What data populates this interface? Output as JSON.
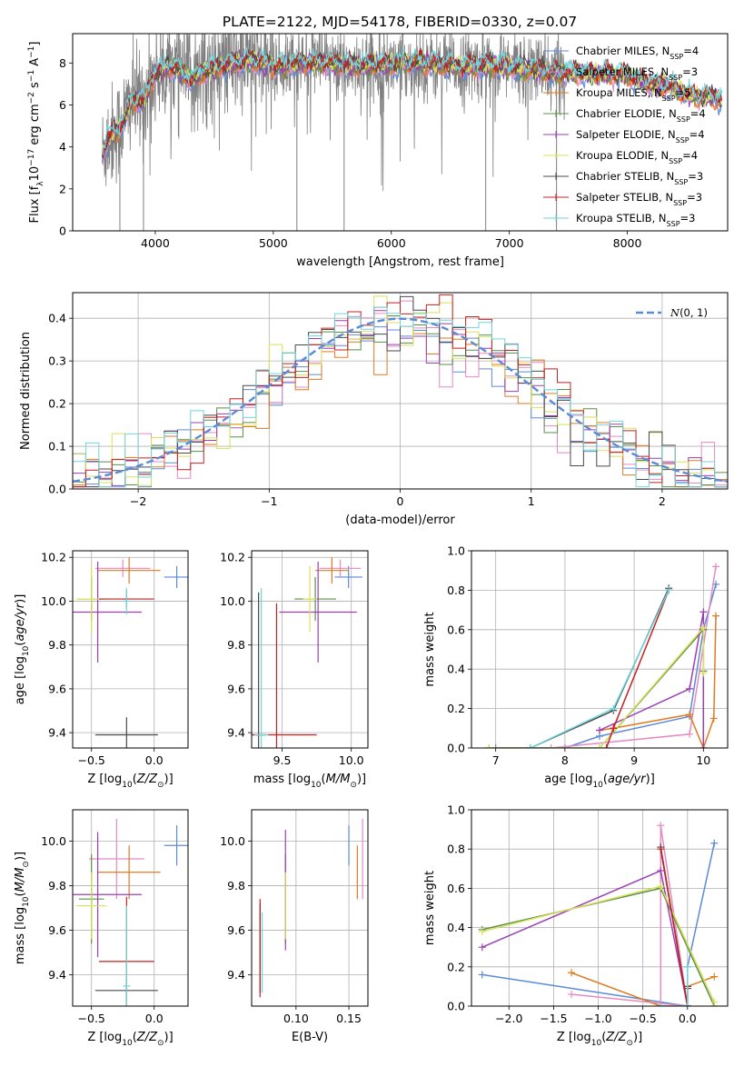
{
  "figure": {
    "title": "PLATE=2122, MJD=54178, FIBERID=0330, z=0.07"
  },
  "colors": {
    "Chabrier MILES": "#5b8bd6",
    "Salpeter MILES": "#e38ac4",
    "Kroupa MILES": "#e07a1f",
    "Chabrier ELODIE": "#5a8f4a",
    "Salpeter ELODIE": "#9b3fb5",
    "Kroupa ELODIE": "#d9e05a",
    "Chabrier STELIB": "#4a4a4a",
    "Salpeter STELIB": "#c42020",
    "Kroupa STELIB": "#6fd6de",
    "data": "#7f7f7f",
    "normal": "#5b8bd6"
  },
  "chart_data": [
    {
      "id": "spectrum",
      "type": "line",
      "xlabel": "wavelength [Angstrom, rest frame]",
      "ylabel": "Flux [f_λ 10^-17 erg cm^-2 s^-1 A^-1]",
      "xlim": [
        3300,
        8850
      ],
      "ylim": [
        0,
        9.4
      ],
      "xticks": [
        4000,
        5000,
        6000,
        7000,
        8000
      ],
      "yticks": [
        0,
        2,
        4,
        6,
        8
      ],
      "grid": false,
      "legend_position": "right",
      "legend": [
        {
          "base": "Chabrier MILES, N",
          "sub": "SSP",
          "tail": "=4"
        },
        {
          "base": "Salpeter MILES, N",
          "sub": "SSP",
          "tail": "=3"
        },
        {
          "base": "Kroupa MILES, N",
          "sub": "SSP",
          "tail": "=5"
        },
        {
          "base": "Chabrier ELODIE, N",
          "sub": "SSP",
          "tail": "=4"
        },
        {
          "base": "Salpeter ELODIE, N",
          "sub": "SSP",
          "tail": "=4"
        },
        {
          "base": "Kroupa ELODIE, N",
          "sub": "SSP",
          "tail": "=4"
        },
        {
          "base": "Chabrier STELIB, N",
          "sub": "SSP",
          "tail": "=3"
        },
        {
          "base": "Salpeter STELIB, N",
          "sub": "SSP",
          "tail": "=3"
        },
        {
          "base": "Kroupa STELIB, N",
          "sub": "SSP",
          "tail": "=3"
        }
      ],
      "continuum": {
        "x": [
          3550,
          3600,
          3700,
          3800,
          3900,
          4000,
          4100,
          4200,
          4300,
          4400,
          4500,
          4600,
          4700,
          4800,
          4900,
          5000,
          5200,
          5400,
          5600,
          5800,
          6000,
          6200,
          6400,
          6600,
          6800,
          7000,
          7200,
          7400,
          7600,
          7800,
          8000,
          8200,
          8400,
          8500,
          8800
        ],
        "y": [
          3.6,
          4.4,
          4.9,
          6.2,
          6.2,
          7.5,
          7.8,
          7.7,
          7.2,
          7.6,
          7.7,
          7.9,
          8.0,
          8.1,
          8.0,
          7.8,
          8.0,
          8.0,
          7.9,
          7.9,
          7.9,
          8.0,
          7.9,
          7.8,
          7.9,
          7.8,
          7.7,
          7.5,
          7.5,
          7.5,
          7.4,
          7.0,
          6.8,
          6.5,
          6.3
        ]
      }
    },
    {
      "id": "residuals",
      "type": "histogram",
      "xlabel": "(data-model)/error",
      "ylabel": "Normed distribution",
      "xlim": [
        -2.5,
        2.5
      ],
      "ylim": [
        0,
        0.46
      ],
      "xticks": [
        -2,
        -1,
        0,
        1,
        2
      ],
      "yticks": [
        0.0,
        0.1,
        0.2,
        0.3,
        0.4
      ],
      "grid": true,
      "legend_position": "top-right",
      "legend": "N(0,1)",
      "bin_width": 0.1
    },
    {
      "id": "age-vs-Z",
      "type": "errorbar",
      "xlabel": "Z [log10(Z/Z⊙)]",
      "ylabel": "age [log10(age/yr)]",
      "xlim": [
        -0.65,
        0.27
      ],
      "ylim": [
        9.33,
        10.23
      ],
      "xticks": [
        -0.5,
        0.0
      ],
      "yticks": [
        9.4,
        9.6,
        9.8,
        10.0,
        10.2
      ],
      "grid": true,
      "points": [
        {
          "m": "Chabrier MILES",
          "x": 0.18,
          "y": 10.11,
          "xe": 0.1,
          "ye": 0.05
        },
        {
          "m": "Salpeter MILES",
          "x": -0.25,
          "y": 10.15,
          "xe": 0.22,
          "ye": 0.04
        },
        {
          "m": "Kroupa MILES",
          "x": -0.2,
          "y": 10.14,
          "xe": 0.25,
          "ye": 0.06
        },
        {
          "m": "Chabrier ELODIE",
          "x": -0.5,
          "y": 10.01,
          "xe": 0.1,
          "ye": 0.1
        },
        {
          "m": "Salpeter ELODIE",
          "x": -0.45,
          "y": 9.95,
          "xe": 0.35,
          "ye": 0.23
        },
        {
          "m": "Kroupa ELODIE",
          "x": -0.5,
          "y": 10.01,
          "xe": 0.12,
          "ye": 0.15
        },
        {
          "m": "Chabrier STELIB",
          "x": -0.22,
          "y": 9.39,
          "xe": 0.25,
          "ye": 0.08
        },
        {
          "m": "Salpeter STELIB",
          "x": -0.22,
          "y": 10.01,
          "xe": 0.22,
          "ye": 0.04
        },
        {
          "m": "Kroupa STELIB",
          "x": -0.22,
          "y": 10.0,
          "xe": 0.03,
          "ye": 0.06
        }
      ]
    },
    {
      "id": "age-vs-mass",
      "type": "errorbar",
      "xlabel": "mass [log10(M/M⊙)]",
      "ylabel": "",
      "xlim": [
        9.28,
        10.12
      ],
      "ylim": [
        9.33,
        10.23
      ],
      "xticks": [
        9.5,
        10.0
      ],
      "yticks": [
        9.4,
        9.6,
        9.8,
        10.0,
        10.2
      ],
      "grid": true,
      "points": [
        {
          "m": "Chabrier MILES",
          "x": 9.98,
          "y": 10.11,
          "xe": 0.1,
          "ye": 0.05
        },
        {
          "m": "Salpeter MILES",
          "x": 9.92,
          "y": 10.15,
          "xe": 0.15,
          "ye": 0.04
        },
        {
          "m": "Kroupa MILES",
          "x": 9.86,
          "y": 10.14,
          "xe": 0.12,
          "ye": 0.06
        },
        {
          "m": "Chabrier ELODIE",
          "x": 9.74,
          "y": 10.01,
          "xe": 0.15,
          "ye": 0.1
        },
        {
          "m": "Salpeter ELODIE",
          "x": 9.76,
          "y": 9.95,
          "xe": 0.28,
          "ye": 0.23
        },
        {
          "m": "Kroupa ELODIE",
          "x": 9.7,
          "y": 10.01,
          "xe": 0.05,
          "ye": 0.15
        },
        {
          "m": "Chabrier STELIB",
          "x": 9.33,
          "y": 9.39,
          "xe": 0.05,
          "ye": 0.65
        },
        {
          "m": "Salpeter STELIB",
          "x": 9.46,
          "y": 9.39,
          "xe": 0.29,
          "ye": 0.6
        },
        {
          "m": "Kroupa STELIB",
          "x": 9.35,
          "y": 9.39,
          "xe": 0.05,
          "ye": 0.67
        }
      ]
    },
    {
      "id": "weight-vs-age",
      "type": "line",
      "xlabel": "age [log10(age/yr)]",
      "ylabel": "mass weight",
      "xlim": [
        6.65,
        10.35
      ],
      "ylim": [
        0,
        1.0
      ],
      "xticks": [
        7,
        8,
        9,
        10
      ],
      "yticks": [
        0.0,
        0.2,
        0.4,
        0.6,
        0.8,
        1.0
      ],
      "grid": true,
      "series": [
        {
          "m": "Chabrier MILES",
          "x": [
            7.0,
            8.0,
            8.5,
            9.8,
            10.0,
            10.18
          ],
          "y": [
            0.0,
            0.0,
            0.06,
            0.16,
            0.6,
            0.83
          ]
        },
        {
          "m": "Salpeter MILES",
          "x": [
            7.8,
            9.8,
            10.18
          ],
          "y": [
            0.0,
            0.07,
            0.92
          ]
        },
        {
          "m": "Kroupa MILES",
          "x": [
            8.5,
            8.7,
            9.8,
            10.0,
            10.15,
            10.18
          ],
          "y": [
            0.09,
            0.1,
            0.17,
            0.0,
            0.15,
            0.67
          ]
        },
        {
          "m": "Chabrier ELODIE",
          "x": [
            6.9,
            8.5,
            10.0,
            10.0
          ],
          "y": [
            0.0,
            0.0,
            0.6,
            0.39
          ]
        },
        {
          "m": "Salpeter ELODIE",
          "x": [
            8.5,
            9.8,
            10.0,
            10.0
          ],
          "y": [
            0.09,
            0.3,
            0.69,
            0.0
          ]
        },
        {
          "m": "Kroupa ELODIE",
          "x": [
            6.9,
            8.5,
            10.0,
            10.0
          ],
          "y": [
            0.0,
            0.0,
            0.61,
            0.38
          ]
        },
        {
          "m": "Chabrier STELIB",
          "x": [
            7.5,
            8.7,
            9.5
          ],
          "y": [
            0.0,
            0.19,
            0.81
          ]
        },
        {
          "m": "Salpeter STELIB",
          "x": [
            8.6,
            8.7,
            9.5
          ],
          "y": [
            0.0,
            0.1,
            0.8
          ]
        },
        {
          "m": "Kroupa STELIB",
          "x": [
            7.5,
            8.7,
            9.5
          ],
          "y": [
            0.0,
            0.2,
            0.8
          ]
        }
      ]
    },
    {
      "id": "mass-vs-Z",
      "type": "errorbar",
      "xlabel": "Z [log10(Z/Z⊙)]",
      "ylabel": "mass [log10(M/M⊙)]",
      "xlim": [
        -0.65,
        0.27
      ],
      "ylim": [
        9.26,
        10.14
      ],
      "xticks": [
        -0.5,
        0.0
      ],
      "yticks": [
        9.4,
        9.6,
        9.8,
        10.0
      ],
      "grid": true,
      "points": [
        {
          "m": "Chabrier MILES",
          "x": 0.18,
          "y": 9.98,
          "xe": 0.1,
          "ye": 0.09
        },
        {
          "m": "Salpeter MILES",
          "x": -0.3,
          "y": 9.92,
          "xe": 0.22,
          "ye": 0.18
        },
        {
          "m": "Kroupa MILES",
          "x": -0.2,
          "y": 9.86,
          "xe": 0.25,
          "ye": 0.12
        },
        {
          "m": "Chabrier ELODIE",
          "x": -0.5,
          "y": 9.74,
          "xe": 0.1,
          "ye": 0.2
        },
        {
          "m": "Salpeter ELODIE",
          "x": -0.45,
          "y": 9.76,
          "xe": 0.35,
          "ye": 0.28
        },
        {
          "m": "Kroupa ELODIE",
          "x": -0.5,
          "y": 9.71,
          "xe": 0.12,
          "ye": 0.15
        },
        {
          "m": "Chabrier STELIB",
          "x": -0.22,
          "y": 9.33,
          "xe": 0.25,
          "ye": 0.05
        },
        {
          "m": "Salpeter STELIB",
          "x": -0.22,
          "y": 9.46,
          "xe": 0.22,
          "ye": 0.29
        },
        {
          "m": "Kroupa STELIB",
          "x": -0.22,
          "y": 9.35,
          "xe": 0.03,
          "ye": 0.36
        }
      ]
    },
    {
      "id": "mass-vs-EBV",
      "type": "errorbar",
      "xlabel": "E(B-V)",
      "ylabel": "",
      "xlim": [
        0.058,
        0.168
      ],
      "ylim": [
        9.26,
        10.14
      ],
      "xticks": [
        0.1,
        0.15
      ],
      "yticks": [
        9.4,
        9.6,
        9.8,
        10.0
      ],
      "grid": true,
      "points": [
        {
          "m": "Chabrier MILES",
          "x": 0.15,
          "y": 9.98,
          "xe": 0,
          "ye": 0.09
        },
        {
          "m": "Salpeter MILES",
          "x": 0.163,
          "y": 9.92,
          "xe": 0,
          "ye": 0.18
        },
        {
          "m": "Kroupa MILES",
          "x": 0.158,
          "y": 9.86,
          "xe": 0,
          "ye": 0.12
        },
        {
          "m": "Chabrier ELODIE",
          "x": 0.09,
          "y": 9.74,
          "xe": 0,
          "ye": 0.2
        },
        {
          "m": "Salpeter ELODIE",
          "x": 0.09,
          "y": 9.78,
          "xe": 0,
          "ye": 0.27
        },
        {
          "m": "Kroupa ELODIE",
          "x": 0.09,
          "y": 9.71,
          "xe": 0,
          "ye": 0.15
        },
        {
          "m": "Chabrier STELIB",
          "x": 0.066,
          "y": 9.52,
          "xe": 0,
          "ye": 0.2
        },
        {
          "m": "Salpeter STELIB",
          "x": 0.066,
          "y": 9.52,
          "xe": 0,
          "ye": 0.22
        },
        {
          "m": "Kroupa STELIB",
          "x": 0.068,
          "y": 9.5,
          "xe": 0,
          "ye": 0.18
        }
      ]
    },
    {
      "id": "weight-vs-Z",
      "type": "line",
      "xlabel": "Z [log10(Z/Z⊙)]",
      "ylabel": "mass weight",
      "xlim": [
        -2.42,
        0.45
      ],
      "ylim": [
        0,
        1.0
      ],
      "xticks": [
        -2.0,
        -1.5,
        -1.0,
        -0.5,
        0.0
      ],
      "yticks": [
        0.0,
        0.2,
        0.4,
        0.6,
        0.8,
        1.0
      ],
      "grid": true,
      "series": [
        {
          "m": "Chabrier MILES",
          "x": [
            -2.3,
            0.0,
            0.0,
            0.3
          ],
          "y": [
            0.16,
            0.0,
            0.2,
            0.83
          ]
        },
        {
          "m": "Salpeter MILES",
          "x": [
            -1.3,
            0.0,
            -0.3,
            -0.3
          ],
          "y": [
            0.06,
            0.0,
            0.92,
            0.0
          ]
        },
        {
          "m": "Kroupa MILES",
          "x": [
            -1.3,
            -0.3,
            0.0,
            0.0,
            0.3
          ],
          "y": [
            0.17,
            0.0,
            0.0,
            0.1,
            0.15
          ]
        },
        {
          "m": "Chabrier ELODIE",
          "x": [
            -2.3,
            -0.3,
            0.3
          ],
          "y": [
            0.39,
            0.6,
            0.0
          ]
        },
        {
          "m": "Salpeter ELODIE",
          "x": [
            -2.3,
            -0.3,
            0.0,
            0.0
          ],
          "y": [
            0.3,
            0.69,
            0.0,
            0.09
          ]
        },
        {
          "m": "Kroupa ELODIE",
          "x": [
            -2.3,
            -0.3,
            0.3
          ],
          "y": [
            0.38,
            0.61,
            0.02
          ]
        },
        {
          "m": "Chabrier STELIB",
          "x": [
            -0.3,
            0.0,
            0.0
          ],
          "y": [
            0.81,
            0.0,
            0.1
          ]
        },
        {
          "m": "Salpeter STELIB",
          "x": [
            -0.3,
            0.0,
            0.0
          ],
          "y": [
            0.8,
            0.0,
            0.09
          ]
        },
        {
          "m": "Kroupa STELIB",
          "x": [
            -0.3,
            0.0,
            0.0
          ],
          "y": [
            0.0,
            0.0,
            0.2
          ]
        }
      ]
    }
  ]
}
